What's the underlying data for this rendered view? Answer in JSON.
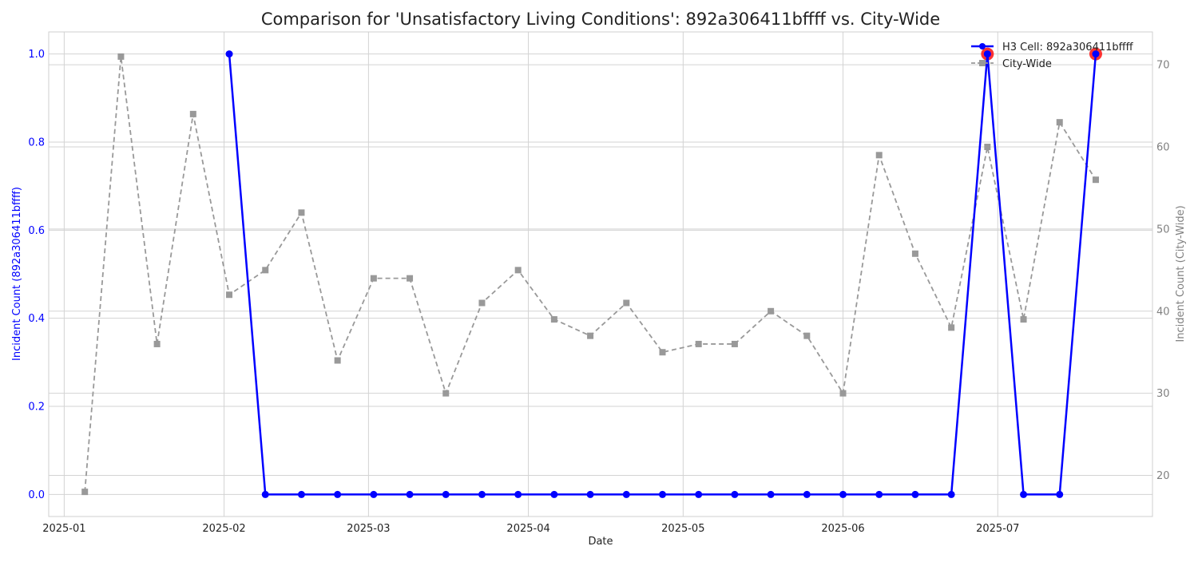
{
  "chart_data": {
    "type": "line",
    "title": "Comparison for 'Unsatisfactory Living Conditions': 892a306411bffff vs. City-Wide",
    "xlabel": "Date",
    "ylabel_left": "Incident Count (892a306411bffff)",
    "ylabel_right": "Incident Count (City-Wide)",
    "x_ticks": [
      "2025-01",
      "2025-02",
      "2025-03",
      "2025-04",
      "2025-05",
      "2025-06",
      "2025-07"
    ],
    "y_left_ticks": [
      "0.0",
      "0.2",
      "0.4",
      "0.6",
      "0.8",
      "1.0"
    ],
    "y_right_ticks": [
      "20",
      "30",
      "40",
      "50",
      "60",
      "70"
    ],
    "ylim_left": [
      -0.05,
      1.05
    ],
    "ylim_right": [
      15,
      74
    ],
    "xlim": [
      "2024-12-29",
      "2025-07-31"
    ],
    "grid": true,
    "legend_position": "top-right",
    "colors": {
      "h3": "#0000ff",
      "city": "#999999",
      "highlight": "#ff0000",
      "left_axis_text": "#0000ff",
      "right_axis_text": "#808080",
      "grid": "#d3d3d3"
    },
    "series": [
      {
        "name": "H3 Cell: 892a306411bffff",
        "axis": "left",
        "style": "solid",
        "marker": "circle",
        "points": [
          {
            "date": "2025-02-02",
            "value": 1
          },
          {
            "date": "2025-02-09",
            "value": 0
          },
          {
            "date": "2025-02-16",
            "value": 0
          },
          {
            "date": "2025-02-23",
            "value": 0
          },
          {
            "date": "2025-03-02",
            "value": 0
          },
          {
            "date": "2025-03-09",
            "value": 0
          },
          {
            "date": "2025-03-16",
            "value": 0
          },
          {
            "date": "2025-03-23",
            "value": 0
          },
          {
            "date": "2025-03-30",
            "value": 0
          },
          {
            "date": "2025-04-06",
            "value": 0
          },
          {
            "date": "2025-04-13",
            "value": 0
          },
          {
            "date": "2025-04-20",
            "value": 0
          },
          {
            "date": "2025-04-27",
            "value": 0
          },
          {
            "date": "2025-05-04",
            "value": 0
          },
          {
            "date": "2025-05-11",
            "value": 0
          },
          {
            "date": "2025-05-18",
            "value": 0
          },
          {
            "date": "2025-05-25",
            "value": 0
          },
          {
            "date": "2025-06-01",
            "value": 0
          },
          {
            "date": "2025-06-08",
            "value": 0
          },
          {
            "date": "2025-06-15",
            "value": 0
          },
          {
            "date": "2025-06-22",
            "value": 0
          },
          {
            "date": "2025-06-29",
            "value": 1
          },
          {
            "date": "2025-07-06",
            "value": 0
          },
          {
            "date": "2025-07-13",
            "value": 0
          },
          {
            "date": "2025-07-20",
            "value": 1
          }
        ]
      },
      {
        "name": "City-Wide",
        "axis": "right",
        "style": "dashed",
        "marker": "square",
        "points": [
          {
            "date": "2025-01-05",
            "value": 18
          },
          {
            "date": "2025-01-12",
            "value": 71
          },
          {
            "date": "2025-01-19",
            "value": 36
          },
          {
            "date": "2025-01-26",
            "value": 64
          },
          {
            "date": "2025-02-02",
            "value": 42
          },
          {
            "date": "2025-02-09",
            "value": 45
          },
          {
            "date": "2025-02-16",
            "value": 52
          },
          {
            "date": "2025-02-23",
            "value": 34
          },
          {
            "date": "2025-03-02",
            "value": 44
          },
          {
            "date": "2025-03-09",
            "value": 44
          },
          {
            "date": "2025-03-16",
            "value": 30
          },
          {
            "date": "2025-03-23",
            "value": 41
          },
          {
            "date": "2025-03-30",
            "value": 45
          },
          {
            "date": "2025-04-06",
            "value": 39
          },
          {
            "date": "2025-04-13",
            "value": 37
          },
          {
            "date": "2025-04-20",
            "value": 41
          },
          {
            "date": "2025-04-27",
            "value": 35
          },
          {
            "date": "2025-05-04",
            "value": 36
          },
          {
            "date": "2025-05-11",
            "value": 36
          },
          {
            "date": "2025-05-18",
            "value": 40
          },
          {
            "date": "2025-05-25",
            "value": 37
          },
          {
            "date": "2025-06-01",
            "value": 30
          },
          {
            "date": "2025-06-08",
            "value": 59
          },
          {
            "date": "2025-06-15",
            "value": 47
          },
          {
            "date": "2025-06-22",
            "value": 38
          },
          {
            "date": "2025-06-29",
            "value": 60
          },
          {
            "date": "2025-07-06",
            "value": 39
          },
          {
            "date": "2025-07-13",
            "value": 63
          },
          {
            "date": "2025-07-20",
            "value": 56
          }
        ]
      }
    ],
    "highlighted_points": [
      {
        "date": "2025-06-29",
        "value": 1
      },
      {
        "date": "2025-07-20",
        "value": 1
      }
    ]
  }
}
